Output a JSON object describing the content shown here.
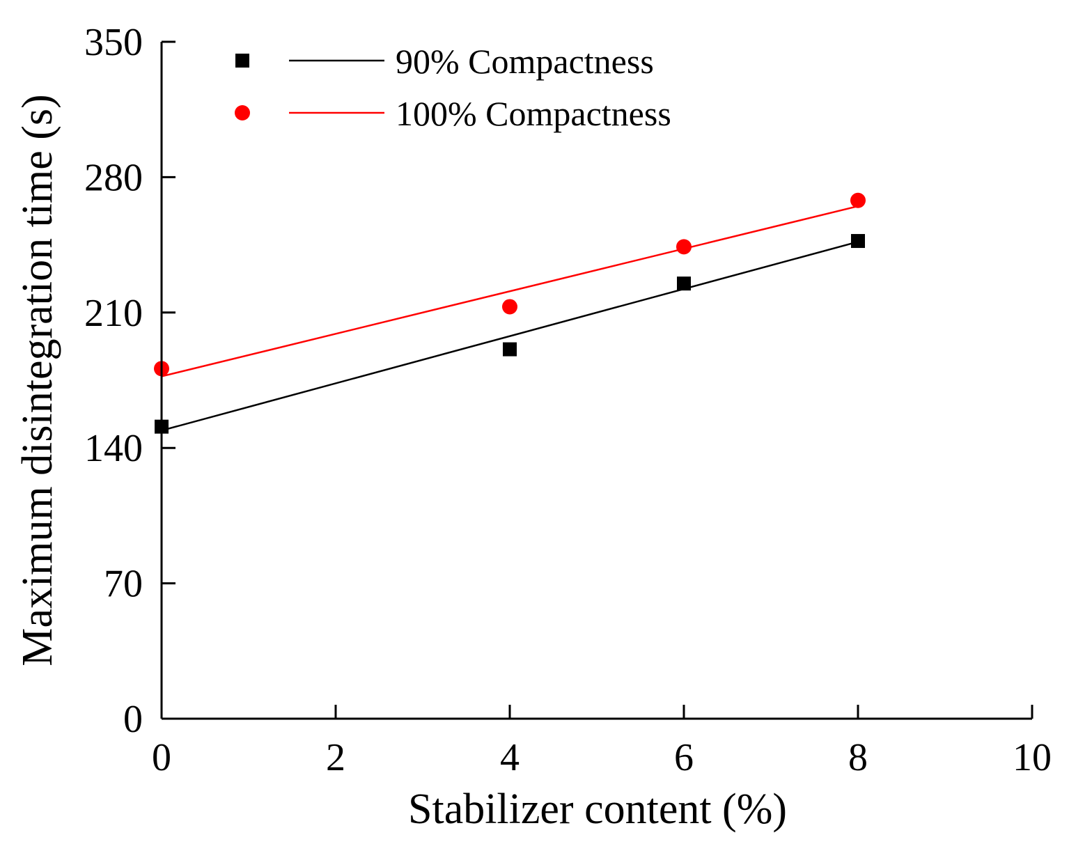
{
  "chart_data": {
    "type": "scatter",
    "title": "",
    "xlabel": "Stabilizer content (%)",
    "ylabel": "Maximum disintegration time (s)",
    "xlim": [
      0,
      10
    ],
    "ylim": [
      0,
      350
    ],
    "xticks": [
      0,
      2,
      4,
      6,
      8,
      10
    ],
    "yticks": [
      0,
      70,
      140,
      210,
      280,
      350
    ],
    "grid": false,
    "legend_position": "top-left",
    "series": [
      {
        "name": "90% Compactness",
        "color": "#000000",
        "marker": "square",
        "x": [
          0,
          4,
          6,
          8
        ],
        "y": [
          151,
          191,
          225,
          247
        ],
        "fit": {
          "slope": 12.2,
          "intercept": 149
        }
      },
      {
        "name": "100% Compactness",
        "color": "#ff0000",
        "marker": "circle",
        "x": [
          0,
          4,
          6,
          8
        ],
        "y": [
          181,
          213,
          244,
          268
        ],
        "fit": {
          "slope": 11.0,
          "intercept": 177
        }
      }
    ]
  }
}
